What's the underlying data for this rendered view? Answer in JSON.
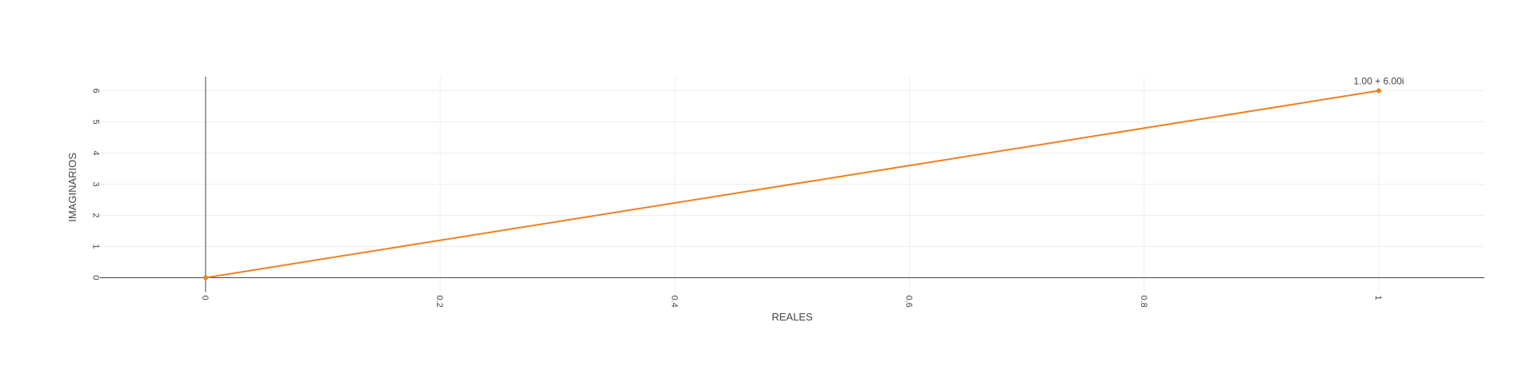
{
  "chart_data": {
    "type": "line",
    "title": "",
    "xlabel": "REALES",
    "ylabel": "IMAGINARIOS",
    "xlim": [
      -0.09,
      1.09
    ],
    "ylim": [
      -0.45,
      6.45
    ],
    "x_ticks": [
      0,
      0.2,
      0.4,
      0.6,
      0.8,
      1
    ],
    "x_tick_labels": [
      "0",
      "0.2",
      "0.4",
      "0.6",
      "0.8",
      "1"
    ],
    "y_ticks": [
      0,
      1,
      2,
      3,
      4,
      5,
      6
    ],
    "y_tick_labels": [
      "0",
      "1",
      "2",
      "3",
      "4",
      "5",
      "6"
    ],
    "grid": true,
    "series": [
      {
        "x": [
          0,
          1
        ],
        "y": [
          0,
          6
        ],
        "point_labels": [
          "",
          "1.00 + 6.00i"
        ],
        "color": "#f0801e"
      }
    ]
  }
}
